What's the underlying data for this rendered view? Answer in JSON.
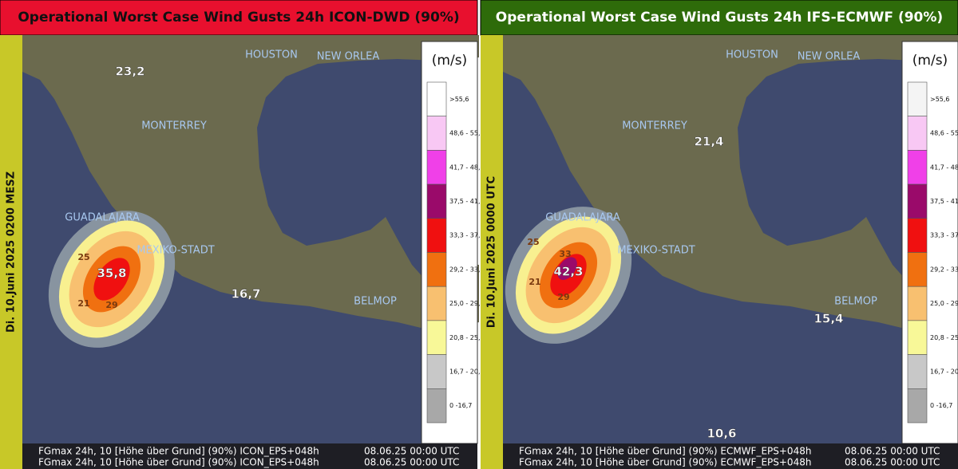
{
  "panels": [
    {
      "title": "Operational Worst Case Wind Gusts 24h ICON-DWD (90%)",
      "date": "Di. 10.Juni 2025 0200 MESZ",
      "legend": {
        "unit": "(m/s)",
        "items": [
          {
            "label": ">55,6",
            "color": "#ffffff"
          },
          {
            "label": "48,6 - 55,",
            "color": "#f8c8f4"
          },
          {
            "label": "41,7 - 48,",
            "color": "#f040e8"
          },
          {
            "label": "37,5 - 41,",
            "color": "#9a0a6a"
          },
          {
            "label": "33,3 - 37,",
            "color": "#f01010"
          },
          {
            "label": "29,2 - 33,",
            "color": "#f07010"
          },
          {
            "label": "25,0 - 29,",
            "color": "#f8c070"
          },
          {
            "label": "20,8 - 25,",
            "color": "#f8f898"
          },
          {
            "label": "16,7 - 20,",
            "color": "#c8c8c8"
          },
          {
            "label": "0 -16,7",
            "color": "#a8a8a8"
          }
        ]
      },
      "cities": [
        "HOUSTON",
        "NEW ORLEA",
        "MONTERREY",
        "GUADALAJARA",
        "MEXIKO-STADT",
        "BELMOP"
      ],
      "values": [
        "23,2",
        "35,8",
        "16,7"
      ],
      "contours": [
        "25",
        "21",
        "29"
      ],
      "footer": [
        [
          "FGmax 24h, 10 [Höhe über Grund] (90%) ICON_EPS+048h",
          "08.06.25 00:00 UTC"
        ],
        [
          "FGmax 24h, 10 [Höhe über Grund] (90%) ICON_EPS+048h",
          "08.06.25 00:00 UTC"
        ]
      ]
    },
    {
      "title": "Operational Worst Case Wind Gusts 24h  IFS-ECMWF (90%)",
      "date": "Di. 10.Juni 2025 0000 UTC",
      "legend": {
        "unit": "(m/s)",
        "items": [
          {
            "label": ">55,6",
            "color": "#f4f4f4"
          },
          {
            "label": "48,6 - 55,",
            "color": "#f8c8f4"
          },
          {
            "label": "41,7 - 48,",
            "color": "#f040e8"
          },
          {
            "label": "37,5 - 41,",
            "color": "#9a0a6a"
          },
          {
            "label": "33,3 - 37,",
            "color": "#f01010"
          },
          {
            "label": "29,2 - 33,",
            "color": "#f07010"
          },
          {
            "label": "25,0 - 29,",
            "color": "#f8c070"
          },
          {
            "label": "20,8 - 25,",
            "color": "#f8f898"
          },
          {
            "label": "16,7 - 20,",
            "color": "#c8c8c8"
          },
          {
            "label": "0 -16,7",
            "color": "#a8a8a8"
          }
        ]
      },
      "cities": [
        "HOUSTON",
        "NEW ORLEA",
        "MONTERREY",
        "GUADALAJARA",
        "MEXIKO-STADT",
        "BELMOP"
      ],
      "values": [
        "21,4",
        "42,3",
        "15,4",
        "10,6"
      ],
      "contours": [
        "33",
        "25",
        "21",
        "29"
      ],
      "footer": [
        [
          "FGmax 24h, 10 [Höhe über Grund] (90%) ECMWF_EPS+048h",
          "08.06.25 00:00 UTC"
        ],
        [
          "FGmax 24h, 10 [Höhe über Grund] (90%) ECMWF_EPS+048h",
          "08.06.25 00:00 UTC"
        ]
      ]
    }
  ]
}
